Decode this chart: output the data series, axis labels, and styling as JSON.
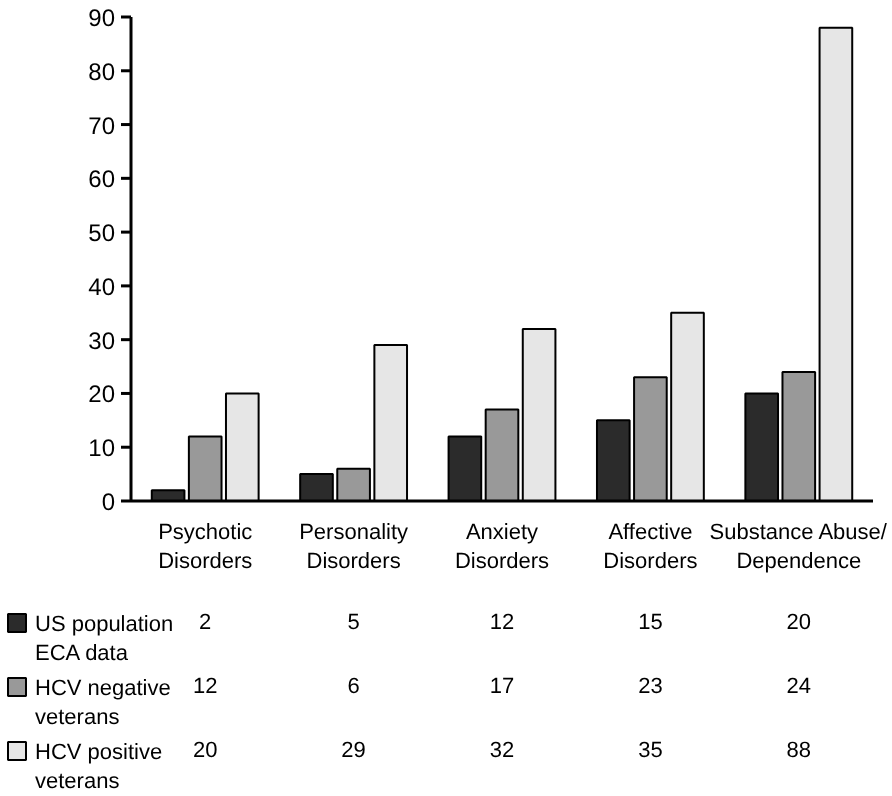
{
  "chart_data": {
    "type": "bar",
    "categories": [
      "Psychotic Disorders",
      "Personality Disorders",
      "Anxiety Disorders",
      "Affective Disorders",
      "Substance Abuse/Dependence"
    ],
    "series": [
      {
        "name": "US population ECA data",
        "color": "#2b2b2b",
        "values": [
          2,
          5,
          12,
          15,
          20
        ]
      },
      {
        "name": "HCV negative veterans",
        "color": "#999999",
        "values": [
          12,
          6,
          17,
          23,
          24
        ]
      },
      {
        "name": "HCV positive veterans",
        "color": "#e6e6e6",
        "values": [
          20,
          29,
          32,
          35,
          88
        ]
      }
    ],
    "ylim": [
      0,
      90
    ],
    "yticks": [
      0,
      10,
      20,
      30,
      40,
      50,
      60,
      70,
      80,
      90
    ],
    "data_labels": true,
    "grid": false,
    "legend": "bottom left"
  }
}
